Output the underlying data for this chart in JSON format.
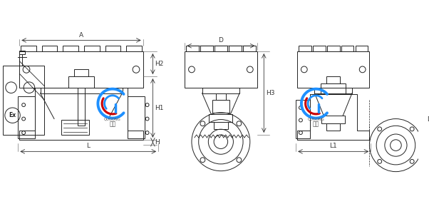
{
  "bg_color": "#ffffff",
  "line_color": "#222222",
  "dim_color": "#333333",
  "logo_blue": "#1e90ff",
  "logo_red": "#cc0000",
  "figsize": [
    6.02,
    3.0
  ],
  "dpi": 100,
  "dim_labels": {
    "A": "A",
    "D": "D",
    "H1": "H1",
    "H2": "H2",
    "H3": "H3",
    "H": "H",
    "L": "L",
    "L1": "L1"
  }
}
